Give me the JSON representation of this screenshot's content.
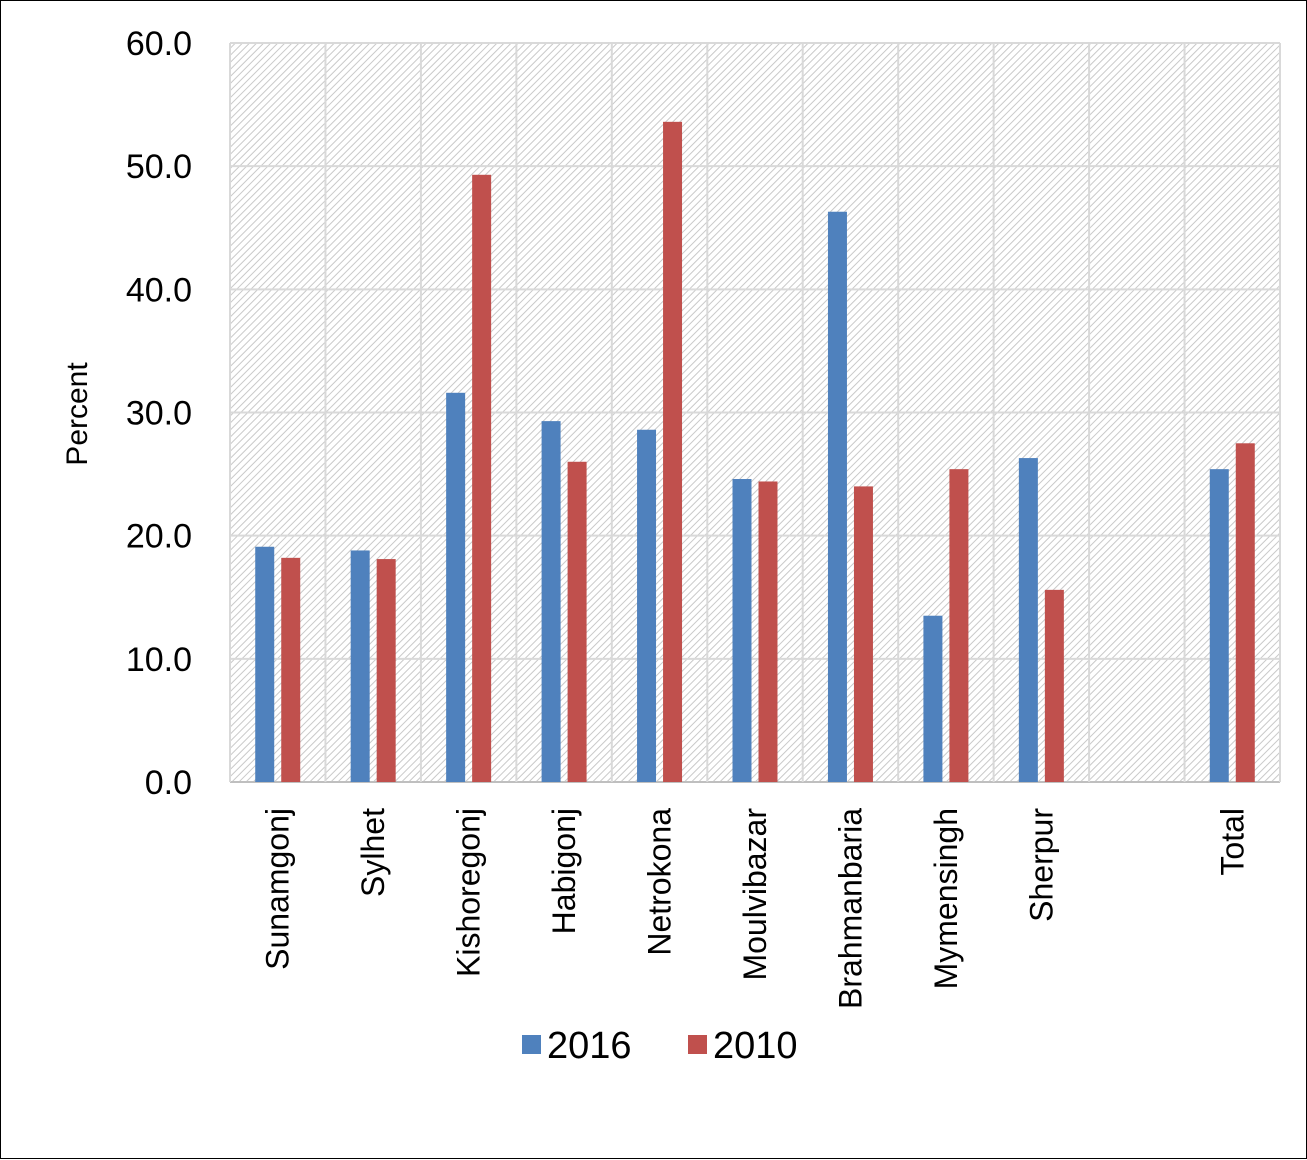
{
  "chart_data": {
    "type": "bar",
    "title": "",
    "xlabel": "",
    "ylabel": "Percent",
    "ylim": [
      0,
      60
    ],
    "yticks": [
      0,
      10,
      20,
      30,
      40,
      50,
      60
    ],
    "ytick_labels": [
      "0.0",
      "10.0",
      "20.0",
      "30.0",
      "40.0",
      "50.0",
      "60.0"
    ],
    "categories": [
      "Sunamgonj",
      "Sylhet",
      "Kishoregonj",
      "Habigonj",
      "Netrokona",
      "Moulvibazar",
      "Brahmanbaria",
      "Mymensingh",
      "Sherpur",
      "",
      "Total"
    ],
    "series": [
      {
        "name": "2016",
        "color": "#4F81BD",
        "values": [
          19.1,
          18.8,
          31.6,
          29.3,
          28.6,
          24.6,
          46.3,
          13.5,
          26.3,
          null,
          25.4
        ]
      },
      {
        "name": "2010",
        "color": "#C0504D",
        "values": [
          18.2,
          18.1,
          49.3,
          26.0,
          53.6,
          24.4,
          24.0,
          25.4,
          15.6,
          null,
          27.5
        ]
      }
    ],
    "grid": true,
    "legend_position": "bottom"
  }
}
